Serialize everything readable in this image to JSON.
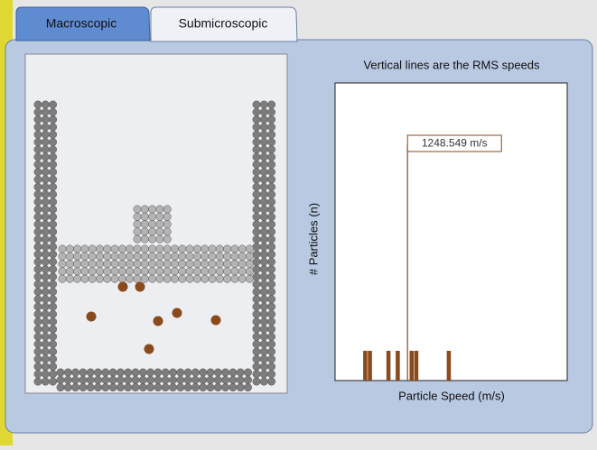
{
  "tabs": [
    "Macroscopic",
    "Submicroscopic"
  ],
  "chart_data": {
    "type": "histogram",
    "title": "Vertical lines are the RMS speeds",
    "x_label": "Particle Speed (m/s)",
    "y_label": "# Particles (n)",
    "bins": [
      0,
      80,
      160,
      240,
      320,
      400,
      480,
      560,
      640,
      720,
      800,
      880,
      960,
      1040,
      1120,
      1200,
      1280,
      1360,
      1440,
      1520,
      1600,
      1680,
      1760,
      1840,
      1920,
      2000,
      2080,
      2160,
      2240,
      2320,
      2400,
      2480,
      2560,
      2640,
      2720,
      2800,
      2880,
      2960,
      3040,
      3120,
      3200,
      3280,
      3360,
      3440,
      3520,
      3600,
      3680,
      3760,
      3840,
      3920,
      4000
    ],
    "values": [
      0,
      0,
      0,
      0,
      0,
      0,
      1,
      1,
      0,
      0,
      0,
      1,
      0,
      1,
      0,
      0,
      1,
      1,
      0,
      0,
      0,
      0,
      0,
      0,
      1,
      0,
      0,
      0,
      0,
      0,
      0,
      0,
      0,
      0,
      0,
      0,
      0,
      0,
      0,
      0,
      0,
      0,
      0,
      0,
      0,
      0,
      0,
      0,
      0,
      0
    ],
    "color": "#8b4a1c",
    "xlim": [
      0,
      4000
    ],
    "ylim": [
      0,
      10
    ],
    "rms": {
      "value": 1248.549,
      "label": "1248.549 m/s"
    }
  }
}
